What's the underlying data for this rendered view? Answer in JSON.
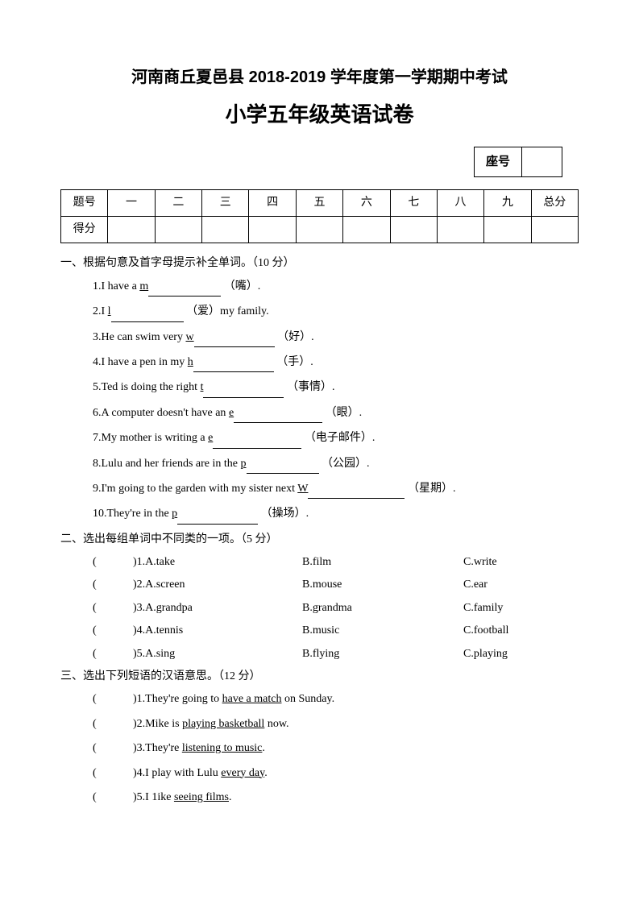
{
  "title1": "河南商丘夏邑县 2018-2019 学年度第一学期期中考试",
  "title2": "小学五年级英语试卷",
  "seat_label": "座号",
  "score_table": {
    "header": [
      "题号",
      "一",
      "二",
      "三",
      "四",
      "五",
      "六",
      "七",
      "八",
      "九",
      "总分"
    ],
    "row_label": "得分"
  },
  "section1": {
    "heading": "一、根据句意及首字母提示补全单词。（10 分）",
    "items": [
      {
        "pre": "1.I have a ",
        "letter": "m",
        "blank_class": "blank-90",
        "post": "（嘴）."
      },
      {
        "pre": "2.I ",
        "letter": "l",
        "blank_class": "blank-90",
        "post": "（爱）my family."
      },
      {
        "pre": "3.He can swim very ",
        "letter": "w",
        "blank_class": "blank-100",
        "post": "（好）."
      },
      {
        "pre": "4.I have a pen in my ",
        "letter": "h",
        "blank_class": "blank-100",
        "post": "（手）."
      },
      {
        "pre": "5.Ted is doing the right ",
        "letter": "t",
        "blank_class": "blank-100",
        "post": "（事情）."
      },
      {
        "pre": "6.A computer doesn't have an ",
        "letter": "e",
        "blank_class": "blank-110",
        "post": "（眼）."
      },
      {
        "pre": "7.My mother is writing a ",
        "letter": "e",
        "blank_class": "blank-110",
        "post": "（电子邮件）."
      },
      {
        "pre": "8.Lulu and her friends are in the ",
        "letter": "p",
        "blank_class": "blank-90",
        "post": "（公园）."
      },
      {
        "pre": "9.I'm going to the garden with my sister next  ",
        "letter": "W",
        "blank_class": "blank-120",
        "post": "（星期）."
      },
      {
        "pre": "10.They're in the ",
        "letter": "p",
        "blank_class": "blank-100",
        "post": "（操场）."
      }
    ]
  },
  "section2": {
    "heading": "二、选出每组单词中不同类的一项。（5 分）",
    "items": [
      {
        "num": ")1.A.take",
        "b": "B.film",
        "c": "C.write"
      },
      {
        "num": ")2.A.screen",
        "b": "B.mouse",
        "c": "C.ear"
      },
      {
        "num": ")3.A.grandpa",
        "b": "B.grandma",
        "c": "C.family"
      },
      {
        "num": ")4.A.tennis",
        "b": "B.music",
        "c": "C.football"
      },
      {
        "num": ")5.A.sing",
        "b": "B.flying",
        "c": "C.playing"
      }
    ]
  },
  "section3": {
    "heading": "三、选出下列短语的汉语意思。（12 分）",
    "items": [
      {
        "num": ")1.",
        "pre": "They're going to ",
        "u": "have a match",
        "post": " on Sunday."
      },
      {
        "num": ")2.",
        "pre": "Mike is ",
        "u": "playing basketball",
        "post": " now."
      },
      {
        "num": ")3.",
        "pre": "They're ",
        "u": "listening to music",
        "post": "."
      },
      {
        "num": ")4.",
        "pre": "I play with Lulu ",
        "u": "every day",
        "post": "."
      },
      {
        "num": ")5.",
        "pre": "I 1ike ",
        "u": "seeing films",
        "post": "."
      }
    ]
  },
  "paren_open": "("
}
